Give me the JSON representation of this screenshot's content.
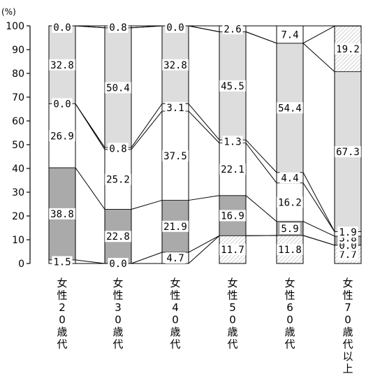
{
  "chart_data": {
    "type": "bar",
    "stacked": true,
    "normalized_percent": true,
    "y_unit": "(%)",
    "ylim": [
      0,
      100
    ],
    "yticks": [
      0,
      10,
      20,
      30,
      40,
      50,
      60,
      70,
      80,
      90,
      100
    ],
    "categories": [
      "女性20歳代",
      "女性30歳代",
      "女性40歳代",
      "女性50歳代",
      "女性60歳代",
      "女性70歳代以上"
    ],
    "category_labels_vertical": [
      [
        "女",
        "性",
        "2",
        "0",
        "歳",
        "代"
      ],
      [
        "女",
        "性",
        "3",
        "0",
        "歳",
        "代"
      ],
      [
        "女",
        "性",
        "4",
        "0",
        "歳",
        "代"
      ],
      [
        "女",
        "性",
        "5",
        "0",
        "歳",
        "代"
      ],
      [
        "女",
        "性",
        "6",
        "0",
        "歳",
        "代"
      ],
      [
        "女",
        "性",
        "7",
        "0",
        "歳",
        "代",
        "以",
        "上"
      ]
    ],
    "series": [
      {
        "color": "#ffffff",
        "pattern": "hatch",
        "values": [
          0.0,
          0.0,
          0.0,
          11.7,
          11.8,
          7.7
        ]
      },
      {
        "color": "#ffffff",
        "values": [
          1.5,
          0.0,
          4.7,
          0.0,
          0.0,
          0.0
        ]
      },
      {
        "color": "#aaaaaa",
        "values": [
          38.8,
          22.8,
          21.9,
          16.9,
          5.9,
          3.8
        ]
      },
      {
        "color": "#ffffff",
        "values": [
          26.9,
          25.2,
          37.5,
          22.1,
          16.2,
          1.9
        ]
      },
      {
        "color": "#ffffff",
        "values": [
          0.0,
          0.8,
          3.1,
          1.3,
          4.4,
          0.0
        ]
      },
      {
        "color": "#dddddd",
        "values": [
          32.8,
          50.4,
          32.8,
          45.5,
          54.4,
          67.3
        ]
      },
      {
        "color": "#ffffff",
        "pattern": "hatch",
        "values": [
          0.0,
          0.0,
          0.0,
          0.0,
          0.0,
          19.2
        ]
      },
      {
        "color": "#ffffff",
        "values": [
          0.0,
          0.8,
          0.0,
          2.6,
          7.4,
          0.0
        ]
      }
    ],
    "labels": [
      [
        "",
        "1.5",
        "38.8",
        "26.9",
        "0.0",
        "32.8",
        "",
        "0.0"
      ],
      [
        "",
        "0.0",
        "22.8",
        "25.2",
        "0.8",
        "50.4",
        "",
        "0.8"
      ],
      [
        "",
        "4.7",
        "21.9",
        "37.5",
        "3.1",
        "32.8",
        "",
        "0.0"
      ],
      [
        "11.7",
        "",
        "16.9",
        "22.1",
        "1.3",
        "45.5",
        "",
        "2.6"
      ],
      [
        "11.8",
        "",
        "5.9",
        "16.2",
        "4.4",
        "54.4",
        "",
        "7.4"
      ],
      [
        "7.7",
        "0.0",
        "3.8",
        "1.9",
        "",
        "67.3",
        "19.2",
        ""
      ]
    ],
    "grid": false,
    "legend": "none"
  }
}
